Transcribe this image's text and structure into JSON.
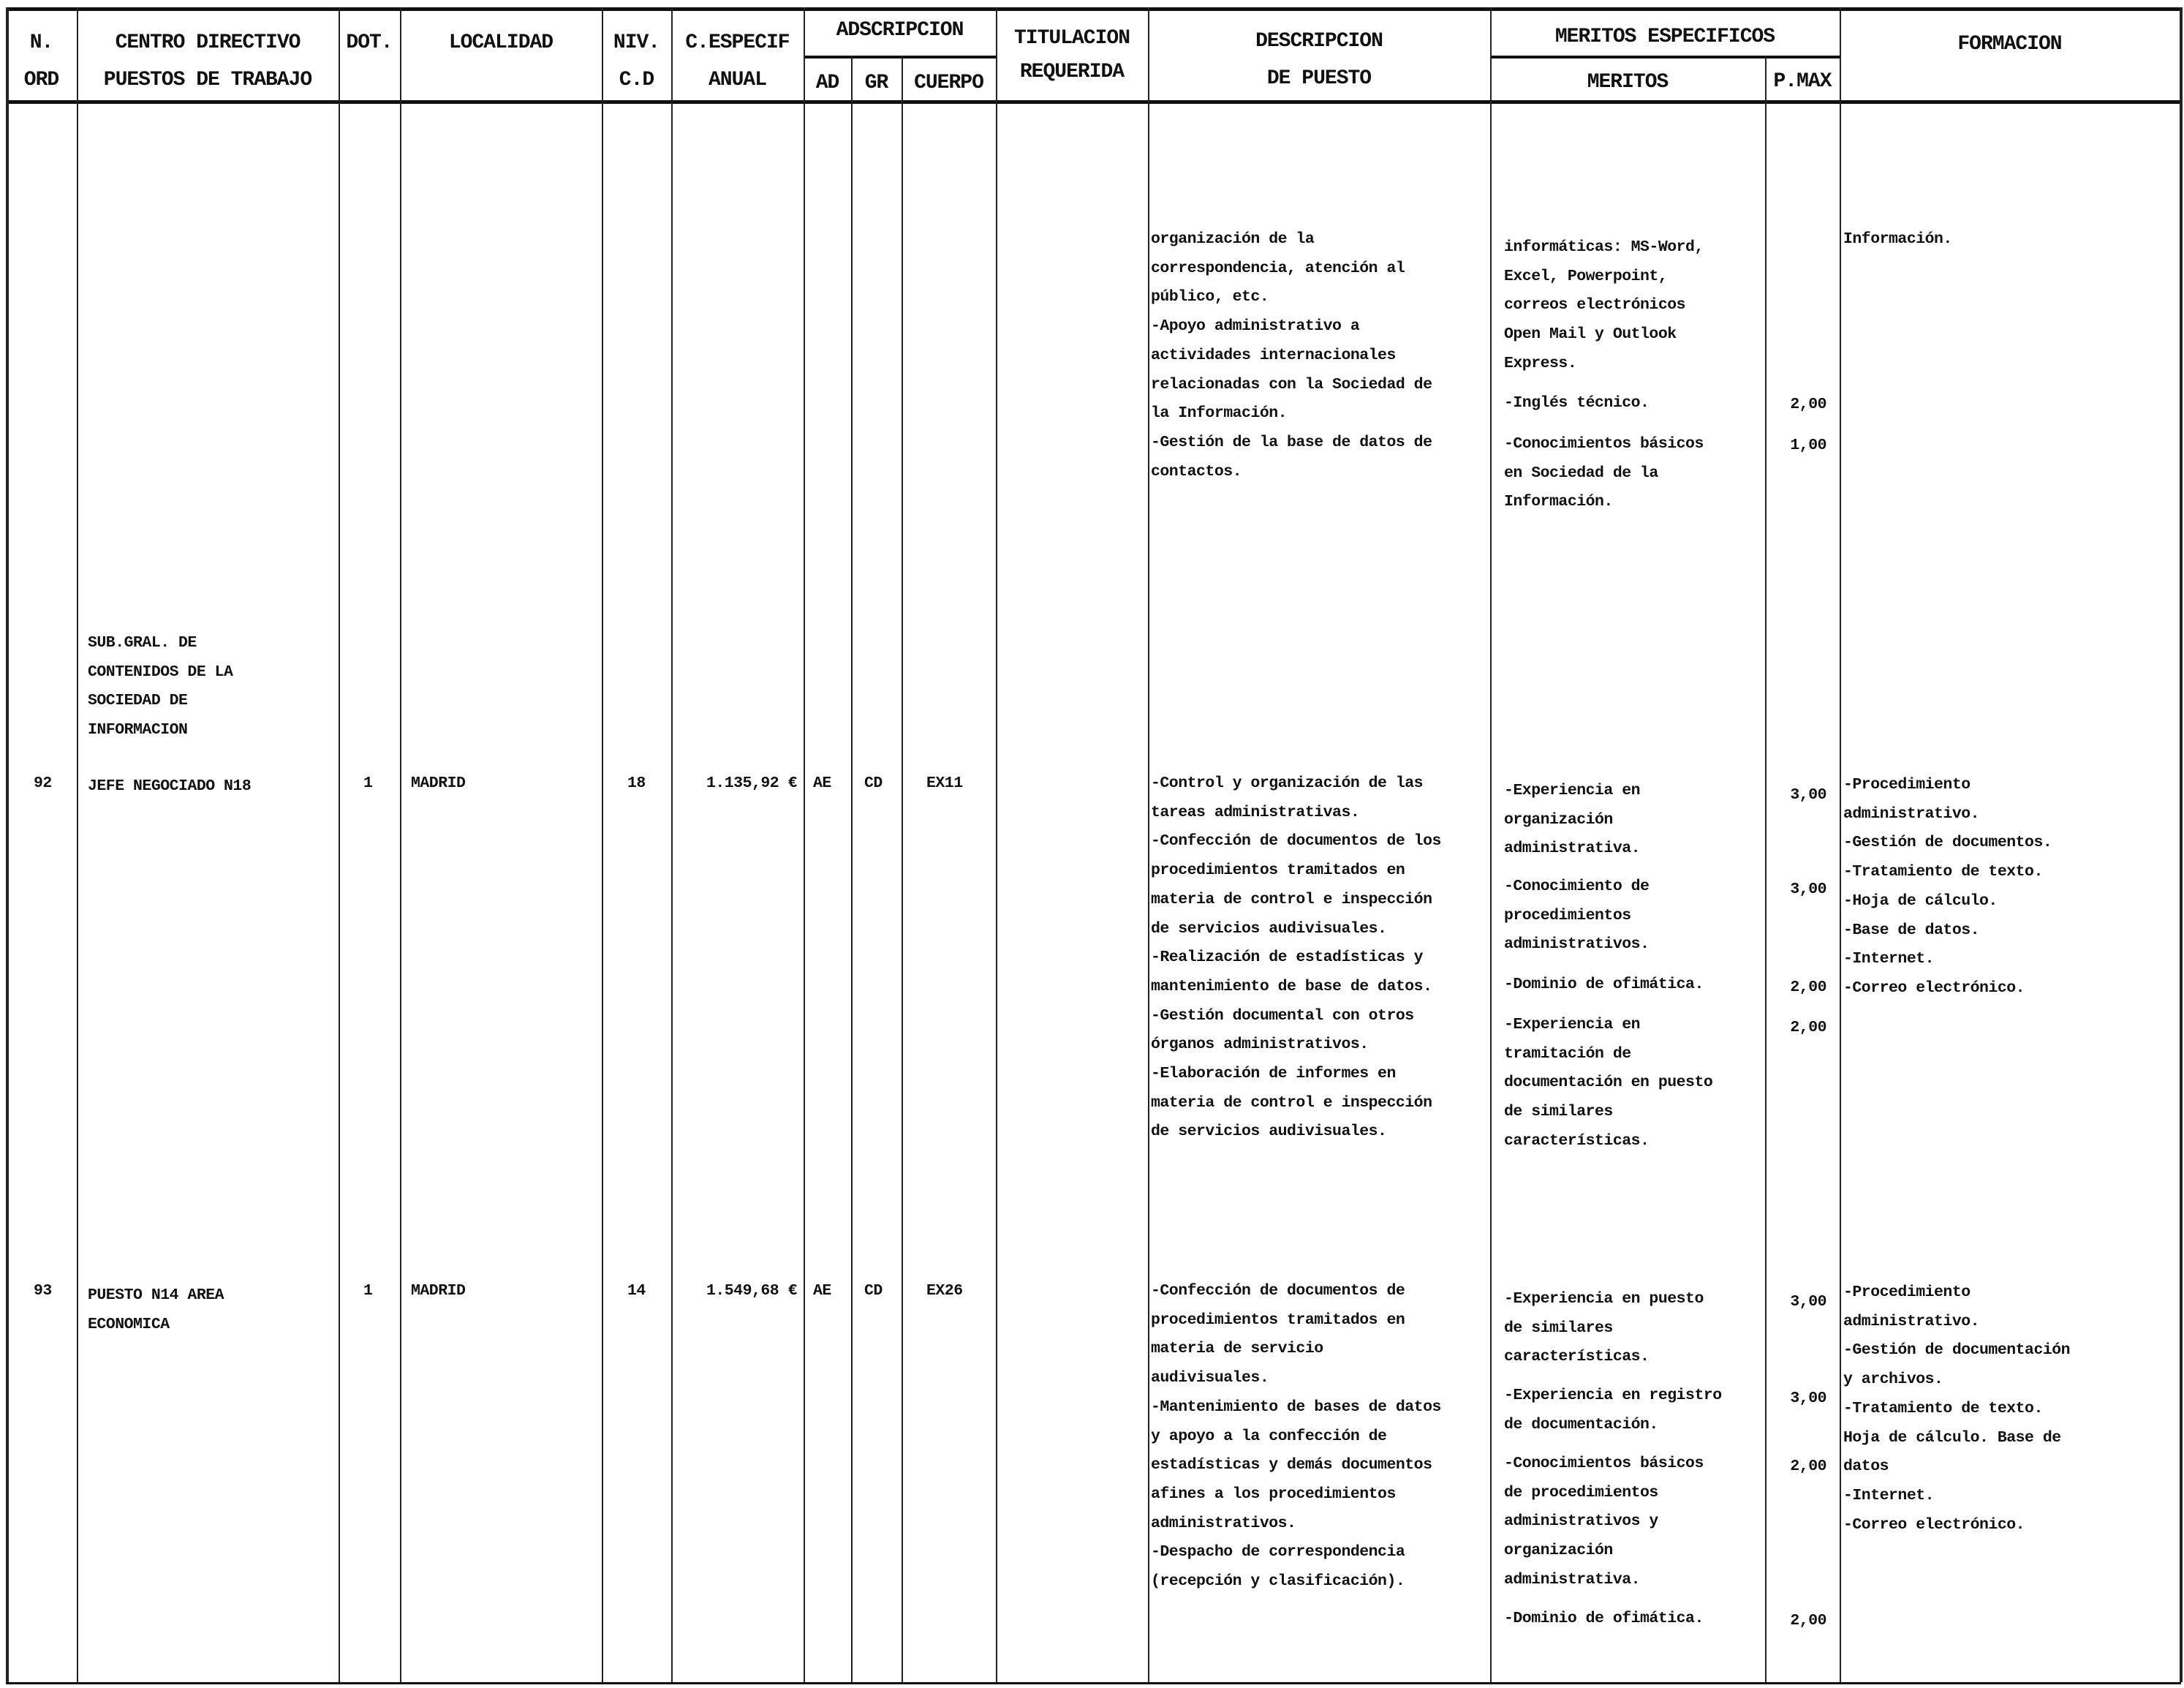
{
  "header": {
    "n_ord": [
      "N.",
      "ORD"
    ],
    "centro": [
      "CENTRO DIRECTIVO",
      "PUESTOS DE TRABAJO"
    ],
    "dot": "DOT.",
    "localidad": "LOCALIDAD",
    "niv": [
      "NIV.",
      "C.D"
    ],
    "c_especif": [
      "C.ESPECIF",
      "ANUAL"
    ],
    "adscripcion": "ADSCRIPCION",
    "ad": "AD",
    "gr": "GR",
    "cuerpo": "CUERPO",
    "titulacion": [
      "TITULACION",
      "REQUERIDA"
    ],
    "descripcion": [
      "DESCRIPCION",
      "DE PUESTO"
    ],
    "meritos_especificos": "MERITOS ESPECIFICOS",
    "meritos": "MERITOS",
    "pmax": "P.MAX",
    "formacion": "FORMACION"
  },
  "rows": [
    {
      "descripcion": [
        "organización de la",
        "correspondencia, atención al",
        "público, etc.",
        "-Apoyo administrativo a",
        "actividades internacionales",
        "relacionadas con la Sociedad de",
        "la Información.",
        "-Gestión de la base de datos de",
        "contactos."
      ],
      "meritos": [
        {
          "lines": [
            "informáticas: MS-Word,",
            "Excel, Powerpoint,",
            "correos electrónicos",
            "Open Mail y Outlook",
            "Express."
          ],
          "pmax": ""
        },
        {
          "lines": [
            "-Inglés técnico."
          ],
          "pmax": "2,00"
        },
        {
          "lines": [
            "-Conocimientos básicos",
            "en Sociedad de la",
            "Información."
          ],
          "pmax": "1,00"
        }
      ],
      "formacion": [
        "Información."
      ]
    },
    {
      "unidad": [
        "SUB.GRAL. DE",
        "CONTENIDOS DE LA",
        "SOCIEDAD DE",
        "INFORMACION"
      ]
    },
    {
      "n_ord": "92",
      "puesto": [
        "JEFE NEGOCIADO N18"
      ],
      "dot": "1",
      "localidad": "MADRID",
      "niv": "18",
      "c_especif": "1.135,92 €",
      "ad": "AE",
      "gr": "CD",
      "cuerpo": "EX11",
      "descripcion": [
        "-Control y organización de las",
        "tareas administrativas.",
        "-Confección de documentos de los",
        "procedimientos tramitados en",
        "materia de control e inspección",
        "de servicios audivisuales.",
        "-Realización de estadísticas y",
        "mantenimiento de base de datos.",
        "-Gestión documental con otros",
        "órganos administrativos.",
        "-Elaboración de informes en",
        "materia de control e inspección",
        "de servicios audivisuales."
      ],
      "meritos": [
        {
          "lines": [
            "-Experiencia en",
            "organización",
            "administrativa."
          ],
          "pmax": "3,00"
        },
        {
          "lines": [
            "-Conocimiento de",
            "procedimientos",
            "administrativos."
          ],
          "pmax": "3,00"
        },
        {
          "lines": [
            "-Dominio de ofimática."
          ],
          "pmax": "2,00"
        },
        {
          "lines": [
            "-Experiencia en",
            "tramitación de",
            "documentación en puesto",
            "de similares",
            "características."
          ],
          "pmax": "2,00"
        }
      ],
      "formacion": [
        "-Procedimiento",
        "administrativo.",
        "-Gestión de documentos.",
        "-Tratamiento de texto.",
        "-Hoja de cálculo.",
        "-Base de datos.",
        "-Internet.",
        "-Correo electrónico."
      ]
    },
    {
      "n_ord": "93",
      "puesto": [
        "PUESTO N14 AREA",
        "ECONOMICA"
      ],
      "dot": "1",
      "localidad": "MADRID",
      "niv": "14",
      "c_especif": "1.549,68 €",
      "ad": "AE",
      "gr": "CD",
      "cuerpo": "EX26",
      "descripcion": [
        "-Confección de documentos de",
        "procedimientos tramitados en",
        "materia de servicio",
        "audivisuales.",
        "-Mantenimiento de bases de datos",
        "y apoyo a la confección de",
        "estadísticas y demás documentos",
        "afines a los procedimientos",
        "administrativos.",
        "-Despacho de correspondencia",
        "(recepción y clasificación)."
      ],
      "meritos": [
        {
          "lines": [
            "-Experiencia en puesto",
            "de similares",
            "características."
          ],
          "pmax": "3,00"
        },
        {
          "lines": [
            "-Experiencia en registro",
            "de documentación."
          ],
          "pmax": "3,00"
        },
        {
          "lines": [
            "-Conocimientos básicos",
            "de procedimientos",
            "administrativos y",
            "organización",
            "administrativa."
          ],
          "pmax": "2,00"
        },
        {
          "lines": [
            "-Dominio de ofimática."
          ],
          "pmax": "2,00"
        }
      ],
      "formacion": [
        "-Procedimiento",
        "administrativo.",
        "-Gestión de documentación",
        "y archivos.",
        "-Tratamiento de texto.",
        "Hoja de cálculo. Base de",
        "datos",
        "-Internet.",
        "-Correo electrónico."
      ]
    }
  ]
}
